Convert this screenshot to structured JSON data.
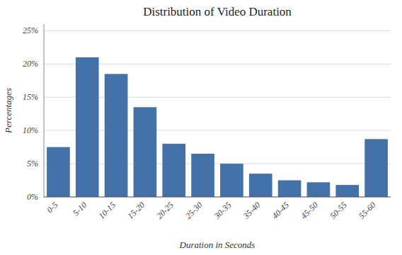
{
  "chart_data": {
    "type": "bar",
    "title": "Distribution of Video Duration",
    "x_label": "Duration in Seconds",
    "y_label": "Percentages",
    "categories": [
      "0-5",
      "5-10",
      "10-15",
      "15-20",
      "20-25",
      "25-30",
      "30-35",
      "35-40",
      "40-45",
      "45-50",
      "50-55",
      "55-60"
    ],
    "values": [
      7.5,
      21.0,
      18.5,
      13.5,
      8.0,
      6.5,
      5.0,
      3.5,
      2.5,
      2.2,
      1.8,
      8.7
    ],
    "color": "#4472a8",
    "ylim": [
      0,
      26
    ],
    "yticks": [
      {
        "value": 0,
        "label": "0%"
      },
      {
        "value": 5,
        "label": "5%"
      },
      {
        "value": 10,
        "label": "10%"
      },
      {
        "value": 15,
        "label": "15%"
      },
      {
        "value": 20,
        "label": "20%"
      },
      {
        "value": 25,
        "label": "25%"
      }
    ],
    "grid": true
  }
}
